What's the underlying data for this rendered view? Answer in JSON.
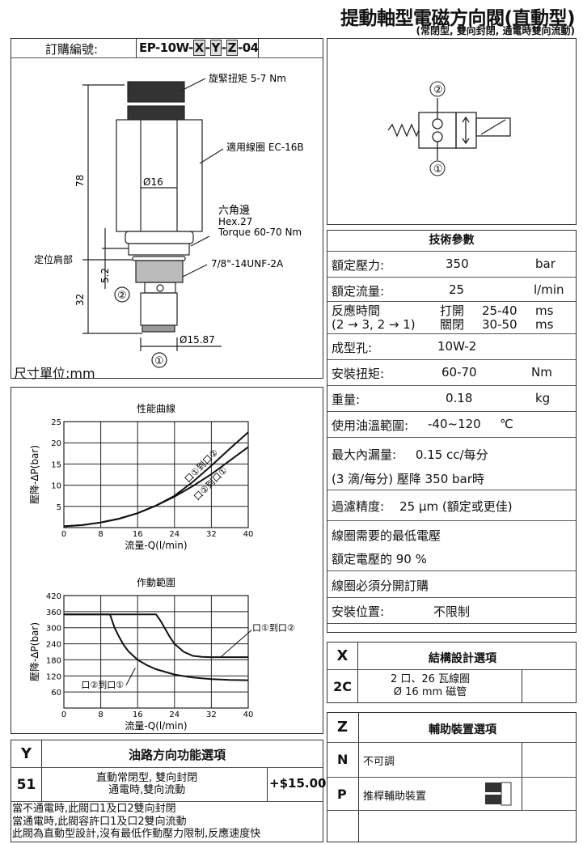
{
  "header": {
    "title": "提動軸型電磁方向閥(直動型)",
    "subtitle": "(常閉型, 雙向封閉, 通電時雙向流動)"
  },
  "order": {
    "label": "訂購編號:",
    "code_prefix": "EP-10W-",
    "x": "X",
    "y": "Y",
    "z": "Z",
    "code_suffix": "-04"
  },
  "drawing": {
    "torque_cap": "旋緊扭矩 5-7 Nm",
    "coil": "適用線圈 EC-16B",
    "dia16": "Ø16",
    "hex_cn": "六角邊",
    "hex": "Hex.27",
    "torque": "Torque 60-70 Nm",
    "shoulder": "定位肩部",
    "thread": "7/8\"-14UNF-2A",
    "dim78": "78",
    "dim32": "32",
    "dim52": "5.2",
    "dia1587": "Ø15.87",
    "port1": "①",
    "port2": "②",
    "unit": "尺寸單位:mm"
  },
  "symbol": {
    "port1": "①",
    "port2": "②"
  },
  "specs": {
    "title": "技術參數",
    "pressure": {
      "label": "額定壓力:",
      "value": "350",
      "unit": "bar"
    },
    "flow": {
      "label": "額定流量:",
      "value": "25",
      "unit": "l/min"
    },
    "response": {
      "label1": "反應時間",
      "label2": "(2 → 3, 2 → 1)",
      "open": "打開",
      "open_val": "25-40",
      "close": "關閉",
      "close_val": "30-50",
      "unit": "ms"
    },
    "cavity": {
      "label": "成型孔:",
      "value": "10W-2"
    },
    "install_torque": {
      "label": "安裝扭矩:",
      "value": "60-70",
      "unit": "Nm"
    },
    "weight": {
      "label": "重量:",
      "value": "0.18",
      "unit": "kg"
    },
    "temp": {
      "label": "使用油溫範圍:",
      "value": "-40~120",
      "unit": "℃"
    },
    "leak1": "最大內漏量:     0.15 cc/每分",
    "leak2": "(3 滴/每分) 壓降 350 bar時",
    "filter": "過濾精度:    25 µm (額定或更佳)",
    "coil1": "線圈需要的最低電壓",
    "coil2": "額定電壓的 90 %",
    "coil_sep": "線圈必須分開訂購",
    "mount": {
      "label": "安裝位置:",
      "value": "不限制"
    }
  },
  "x_table": {
    "key": "X",
    "title": "結構設計選項",
    "rows": [
      {
        "code": "2C",
        "line1": "2 口、26 瓦線圈",
        "line2": "Ø 16 mm 磁管"
      }
    ]
  },
  "z_table": {
    "key": "Z",
    "title": "輔助裝置選項",
    "rows": [
      {
        "code": "N",
        "desc": "不可調"
      },
      {
        "code": "P",
        "desc": "推桿輔助裝置"
      }
    ]
  },
  "y_table": {
    "key": "Y",
    "title": "油路方向功能選項",
    "rows": [
      {
        "code": "51",
        "line1": "直動常閉型, 雙向封閉",
        "line2": "通電時,雙向流動",
        "price": "+$15.00"
      }
    ],
    "notes": [
      "當不通電時,此閥口1及口2雙向封閉",
      "當通電時,此閥容許口1及口2雙向流動",
      "此閥為直動型設計,沒有最低作動壓力限制,反應速度快"
    ]
  },
  "chart_data": [
    {
      "type": "line",
      "title": "性能曲線",
      "xlabel": "流量-Q(l/min)",
      "ylabel": "壓降-ΔP(bar)",
      "xlim": [
        0,
        40
      ],
      "ylim": [
        0,
        25
      ],
      "xticks": [
        0,
        8,
        16,
        24,
        32,
        40
      ],
      "yticks": [
        5,
        10,
        15,
        20,
        25
      ],
      "grid": true,
      "series": [
        {
          "name": "口①到口②",
          "x": [
            0,
            4,
            8,
            12,
            16,
            20,
            24,
            28,
            32,
            36,
            40
          ],
          "y": [
            0.3,
            0.6,
            1.2,
            2.1,
            3.4,
            5.2,
            7.5,
            10.8,
            14.6,
            18.6,
            22.5
          ]
        },
        {
          "name": "口②到口①",
          "x": [
            0,
            4,
            8,
            12,
            16,
            20,
            24,
            28,
            32,
            36,
            40
          ],
          "y": [
            0.3,
            0.6,
            1.2,
            2.1,
            3.4,
            5.2,
            7.3,
            9.8,
            12.6,
            15.8,
            19.0
          ]
        }
      ]
    },
    {
      "type": "line",
      "title": "作動範圍",
      "xlabel": "流量-Q(l/min)",
      "ylabel": "壓降-ΔP(bar)",
      "xlim": [
        0,
        40
      ],
      "ylim": [
        0,
        420
      ],
      "xticks": [
        0,
        8,
        16,
        24,
        32,
        40
      ],
      "yticks": [
        60,
        120,
        180,
        240,
        300,
        360,
        420
      ],
      "grid": true,
      "series": [
        {
          "name": "口①到口②",
          "x": [
            0,
            20,
            21,
            22,
            23,
            24,
            26,
            28,
            30,
            32,
            36,
            40
          ],
          "y": [
            350,
            350,
            325,
            295,
            265,
            240,
            210,
            195,
            191,
            190,
            190,
            190
          ]
        },
        {
          "name": "口②到口①",
          "x": [
            0,
            10,
            11,
            12,
            13,
            14,
            16,
            18,
            20,
            24,
            28,
            32,
            36,
            40
          ],
          "y": [
            350,
            350,
            300,
            265,
            235,
            212,
            180,
            160,
            145,
            125,
            114,
            108,
            105,
            104
          ]
        }
      ]
    }
  ]
}
